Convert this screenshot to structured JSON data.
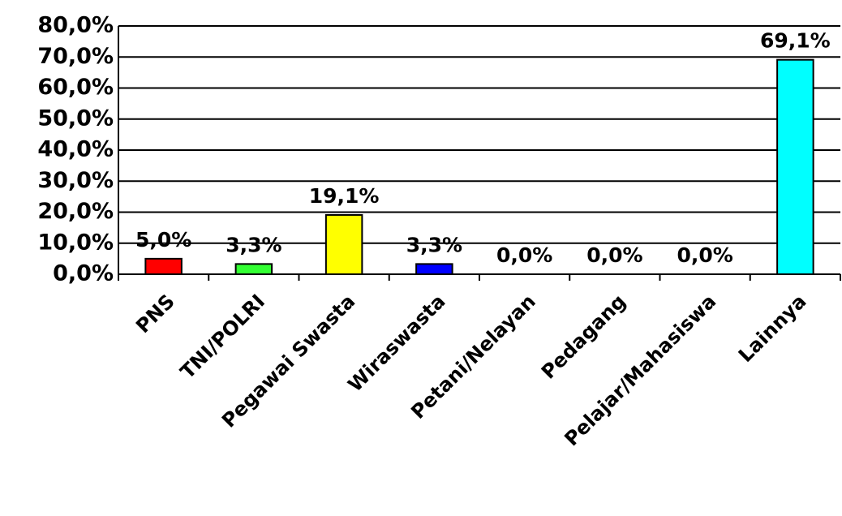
{
  "chart_data": {
    "type": "bar",
    "categories": [
      "PNS",
      "TNI/POLRI",
      "Pegawai Swasta",
      "Wiraswasta",
      "Petani/Nelayan",
      "Pedagang",
      "Pelajar/Mahasiswa",
      "Lainnya"
    ],
    "values": [
      5.0,
      3.3,
      19.1,
      3.3,
      0.0,
      0.0,
      0.0,
      69.1
    ],
    "value_labels": [
      "5,0%",
      "3,3%",
      "19,1%",
      "3,3%",
      "0,0%",
      "0,0%",
      "0,0%",
      "69,1%"
    ],
    "colors": [
      "#ff0000",
      "#33ff33",
      "#ffff00",
      "#0000ff",
      null,
      null,
      null,
      "#00ffff"
    ],
    "ylim": [
      0,
      80
    ],
    "yticks": [
      {
        "value": 0,
        "label": "0,0%"
      },
      {
        "value": 10,
        "label": "10,0%"
      },
      {
        "value": 20,
        "label": "20,0%"
      },
      {
        "value": 30,
        "label": "30,0%"
      },
      {
        "value": 40,
        "label": "40,0%"
      },
      {
        "value": 50,
        "label": "50,0%"
      },
      {
        "value": 60,
        "label": "60,0%"
      },
      {
        "value": 70,
        "label": "70,0%"
      },
      {
        "value": 80,
        "label": "80,0%"
      }
    ],
    "grid": true
  }
}
